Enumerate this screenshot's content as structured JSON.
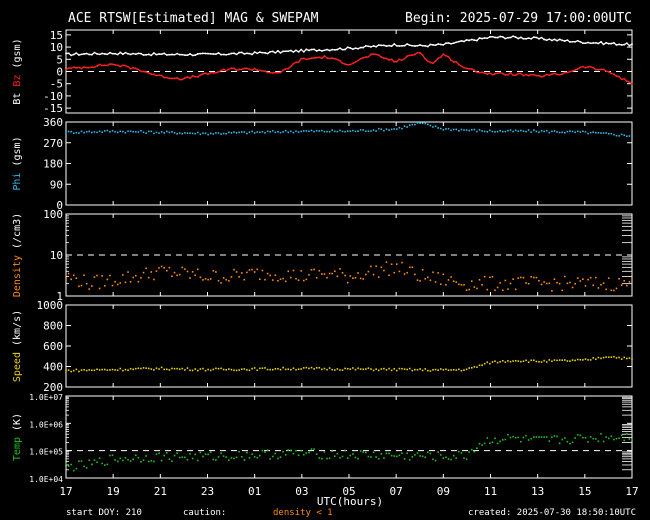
{
  "header": {
    "title": "ACE RTSW[Estimated] MAG & SWEPAM",
    "begin": "Begin: 2025-07-29 17:00:00UTC"
  },
  "footer": {
    "start_doy": "start DOY: 210",
    "caution": "caution:",
    "density_note": "density < 1",
    "created": "created: 2025-07-30 18:50:10UTC"
  },
  "chart_data": [
    {
      "type": "line",
      "panel": "mag-bt-bz",
      "ylabel_a": "Bt",
      "ylabel_b": "Bz",
      "ylabel_unit": "(gsm)",
      "ylim": [
        -17,
        17
      ],
      "yticks": [
        15,
        10,
        5,
        0,
        -5,
        -10,
        -15
      ],
      "ytick_labels": [
        "15",
        "10",
        "5",
        "0",
        "-5",
        "-10",
        "-15"
      ],
      "dashed_line": 0,
      "series": [
        {
          "name": "Bt",
          "color": "#ffffff",
          "x": [
            0,
            2,
            4,
            6,
            8,
            10,
            12,
            14,
            15,
            16,
            18,
            19,
            20,
            22,
            24
          ],
          "values": [
            7,
            7.5,
            7,
            7,
            7.5,
            8.5,
            9.5,
            11,
            10.5,
            11,
            14,
            14,
            13.5,
            12,
            11
          ]
        },
        {
          "name": "Bz",
          "color": "#ff2020",
          "x": [
            0,
            1,
            2,
            3,
            4,
            5,
            6,
            7,
            8,
            9,
            10,
            11,
            12,
            13,
            14,
            15,
            15.5,
            16,
            17,
            18,
            19,
            20,
            21,
            22,
            23,
            24
          ],
          "values": [
            1,
            2,
            3,
            1,
            -2,
            -3,
            -1,
            1,
            1,
            -1,
            5,
            6,
            3,
            7,
            4,
            8,
            3,
            7,
            1,
            -1,
            -1,
            -2,
            -1,
            2,
            0,
            -5
          ]
        }
      ]
    },
    {
      "type": "scatter",
      "panel": "phi",
      "ylabel_a": "Phi",
      "ylabel_unit": "(gsm)",
      "ylim": [
        0,
        360
      ],
      "yticks": [
        360,
        270,
        180,
        90,
        0
      ],
      "ytick_labels": [
        "360",
        "270",
        "180",
        "90",
        "0"
      ],
      "series": [
        {
          "name": "Phi",
          "color": "#30b8e8",
          "x": [
            0,
            2,
            4,
            6,
            8,
            10,
            12,
            14,
            15,
            16,
            18,
            20,
            22,
            24
          ],
          "values": [
            315,
            320,
            315,
            310,
            315,
            320,
            320,
            330,
            355,
            330,
            320,
            320,
            315,
            300
          ]
        }
      ]
    },
    {
      "type": "scatter",
      "panel": "density",
      "ylabel_a": "Density",
      "ylabel_unit": "(/cm3)",
      "scale": "log",
      "ylim": [
        1,
        100
      ],
      "yticks": [
        100,
        10,
        1
      ],
      "ytick_labels": [
        "100",
        "10",
        "1"
      ],
      "dashed_line": 10,
      "series": [
        {
          "name": "Density",
          "color": "#ff8c10",
          "x": [
            0,
            1,
            2,
            3,
            4,
            5,
            6,
            7,
            8,
            9,
            10,
            11,
            12,
            13,
            14,
            15,
            16,
            17
          ],
          "values": [
            3,
            2,
            2.5,
            3,
            4,
            3.5,
            3,
            3,
            3.5,
            3.5,
            3,
            3.5,
            3,
            4,
            5,
            3,
            2.5,
            2
          ]
        }
      ]
    },
    {
      "type": "scatter",
      "panel": "speed",
      "ylabel_a": "Speed",
      "ylabel_unit": "(km/s)",
      "ylim": [
        200,
        1000
      ],
      "yticks": [
        1000,
        800,
        600,
        400,
        200
      ],
      "ytick_labels": [
        "1000",
        "800",
        "600",
        "400",
        "200"
      ],
      "series": [
        {
          "name": "Speed",
          "color": "#e8d010",
          "x": [
            0,
            2,
            4,
            6,
            8,
            10,
            12,
            14,
            16,
            17,
            18,
            19,
            20,
            22,
            23,
            24
          ],
          "values": [
            360,
            370,
            380,
            370,
            375,
            380,
            375,
            370,
            365,
            370,
            440,
            460,
            450,
            460,
            500,
            470
          ]
        }
      ]
    },
    {
      "type": "scatter",
      "panel": "temp",
      "ylabel_a": "Temp",
      "ylabel_unit": "(K)",
      "scale": "log",
      "ylim": [
        10000,
        10000000
      ],
      "yticks": [
        10000000,
        1000000,
        100000,
        10000
      ],
      "ytick_labels": [
        "1.0E+07",
        "1.0E+06",
        "1.0E+05",
        "1.0E+04"
      ],
      "dashed_line": 100000,
      "series": [
        {
          "name": "Temp",
          "color": "#20c020",
          "x": [
            0,
            1,
            2,
            4,
            6,
            8,
            10,
            12,
            14,
            16,
            17,
            18,
            19,
            20,
            22,
            24
          ],
          "values": [
            25000,
            30000,
            50000,
            60000,
            60000,
            70000,
            80000,
            70000,
            65000,
            60000,
            65000,
            250000,
            280000,
            220000,
            280000,
            350000
          ]
        }
      ]
    }
  ],
  "x_axis": {
    "label": "UTC(hours)",
    "range": [
      0,
      24
    ],
    "tick_labels": [
      "17",
      "19",
      "21",
      "23",
      "01",
      "03",
      "05",
      "07",
      "09",
      "11",
      "13",
      "15",
      "17"
    ]
  }
}
